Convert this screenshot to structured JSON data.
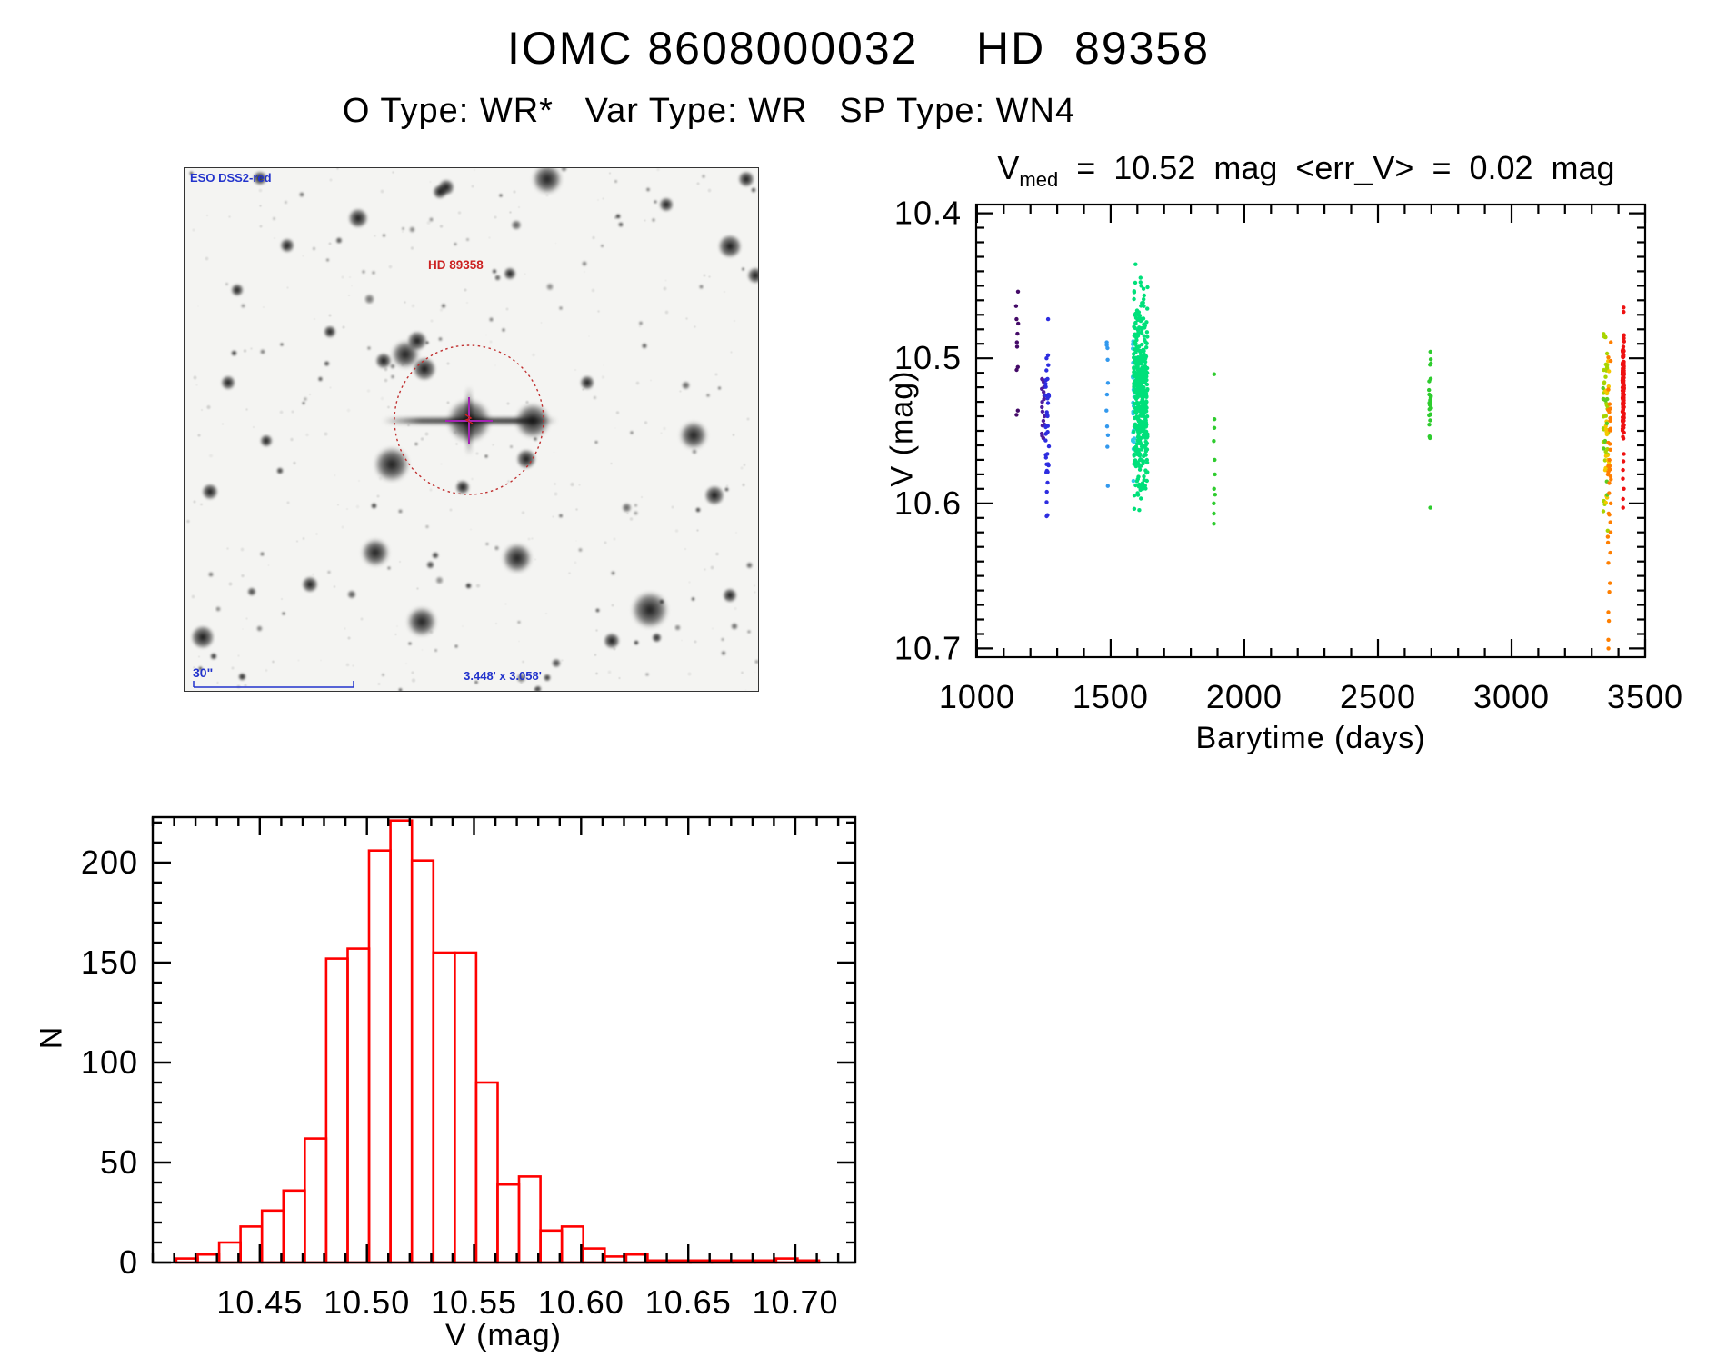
{
  "render_seed": 20240612,
  "page": {
    "title": "IOMC 8608000032    HD  89358",
    "subtitle": "O Type: WR*   Var Type: WR   SP Type: WN4"
  },
  "finder": {
    "survey_label": "ESO DSS2-red",
    "target_label": "HD 89358",
    "scale_label": "30\"",
    "fov_label": "3.448' x 3.058'",
    "colors": {
      "annotation_blue": "#2233cc",
      "target_circle_red": "#c03030",
      "crosshair_purple": "#a424b4"
    },
    "random_specks": {
      "count": 260
    },
    "random_stars": {
      "count": 120
    },
    "prominent_stars": [
      [
        313,
        278,
        24
      ],
      [
        383,
        278,
        19
      ],
      [
        243,
        205,
        15
      ],
      [
        264,
        221,
        13
      ],
      [
        219,
        212,
        9
      ],
      [
        256,
        190,
        11
      ],
      [
        228,
        326,
        19
      ],
      [
        399,
        12,
        16
      ],
      [
        191,
        55,
        11
      ],
      [
        113,
        85,
        8
      ],
      [
        281,
        26,
        8
      ],
      [
        600,
        86,
        13
      ],
      [
        628,
        118,
        9
      ],
      [
        560,
        294,
        15
      ],
      [
        583,
        360,
        11
      ],
      [
        210,
        423,
        15
      ],
      [
        366,
        429,
        16
      ],
      [
        261,
        499,
        16
      ],
      [
        512,
        486,
        20
      ],
      [
        20,
        516,
        13
      ],
      [
        138,
        458,
        9
      ],
      [
        48,
        236,
        8
      ],
      [
        28,
        356,
        9
      ],
      [
        288,
        21,
        9
      ],
      [
        358,
        116,
        7
      ],
      [
        376,
        320,
        11
      ],
      [
        306,
        351,
        8
      ],
      [
        58,
        134,
        7
      ],
      [
        443,
        236,
        8
      ],
      [
        530,
        40,
        8
      ],
      [
        618,
        12,
        9
      ],
      [
        83,
        11,
        8
      ],
      [
        470,
        520,
        9
      ],
      [
        600,
        470,
        8
      ],
      [
        160,
        180,
        7
      ],
      [
        90,
        300,
        7
      ]
    ]
  },
  "chart_data": [
    {
      "type": "scatter",
      "title": {
        "pre": "V",
        "sub": "med",
        "post": " = 10.52 mag <err_V> = 0.02 mag"
      },
      "xlabel": "Barytime (days)",
      "ylabel": "V (mag)",
      "xlim": [
        997,
        3500
      ],
      "ylim": [
        10.394,
        10.706
      ],
      "y_axis_inverted": true,
      "grid": false,
      "x_major_ticks": [
        1000,
        1500,
        2000,
        2500,
        3000,
        3500
      ],
      "x_tick_labels": [
        "1000",
        "1500",
        "2000",
        "2500",
        "3000",
        "3500"
      ],
      "x_minor_step": 100,
      "y_major_ticks": [
        10.4,
        10.5,
        10.6,
        10.7
      ],
      "y_tick_labels": [
        "10.4",
        "10.5",
        "10.6",
        "10.7"
      ],
      "y_minor_step": 0.01,
      "clusters": [
        {
          "name": "epoch-1150-darkpurple",
          "color": "#440a68",
          "day": 1150,
          "day_jitter": 4,
          "mags": [
            10.454,
            10.464,
            10.473,
            10.476,
            10.483,
            10.489,
            10.492,
            10.506,
            10.508,
            10.536,
            10.539
          ]
        },
        {
          "name": "epoch-1248-purple",
          "color": "#4f1d9e",
          "day": 1248,
          "day_jitter": 6,
          "gen": {
            "n": 18,
            "mean": 10.54,
            "sd": 0.022,
            "min": 10.503,
            "max": 10.567
          }
        },
        {
          "name": "epoch-1263-blue",
          "color": "#2d2de0",
          "day": 1263,
          "day_jitter": 7,
          "gen": {
            "n": 40,
            "mean": 10.545,
            "sd": 0.038,
            "min": 10.452,
            "max": 10.615
          }
        },
        {
          "name": "epoch-1487-lightblue",
          "color": "#3399ee",
          "day": 1487,
          "day_jitter": 3,
          "mags": [
            10.489,
            10.491,
            10.493,
            10.501,
            10.517,
            10.525,
            10.536,
            10.547,
            10.553,
            10.561,
            10.588
          ]
        },
        {
          "name": "epoch-1586-cyan",
          "color": "#2ec8e8",
          "day": 1586,
          "day_jitter": 4,
          "gen": {
            "n": 22,
            "mean": 10.53,
            "sd": 0.03,
            "min": 10.468,
            "max": 10.6
          }
        },
        {
          "name": "epoch-1612-springgreen",
          "color": "#00e07a",
          "day": 1612,
          "day_jitter": 26,
          "gen": {
            "n": 430,
            "mean": 10.523,
            "sd": 0.033,
            "min": 10.409,
            "max": 10.627
          }
        },
        {
          "name": "epoch-1888-green",
          "color": "#2ecc2e",
          "day": 1888,
          "day_jitter": 3,
          "mags": [
            10.511,
            10.542,
            10.548,
            10.557,
            10.57,
            10.58,
            10.59,
            10.594,
            10.6,
            10.607,
            10.614
          ]
        },
        {
          "name": "epoch-2695-green",
          "color": "#2ecc2e",
          "day": 2695,
          "day_jitter": 4,
          "gen": {
            "n": 26,
            "mean": 10.525,
            "sd": 0.02,
            "min": 10.487,
            "max": 10.558
          },
          "mags": [
            10.603
          ]
        },
        {
          "name": "epoch-3352-yellowgreen",
          "color": "#a8d400",
          "day": 3352,
          "day_jitter": 9,
          "gen": {
            "n": 40,
            "mean": 10.535,
            "sd": 0.035,
            "min": 10.483,
            "max": 10.625
          }
        },
        {
          "name": "epoch-3358-gold",
          "color": "#f5c800",
          "day": 3358,
          "day_jitter": 8,
          "gen": {
            "n": 22,
            "mean": 10.545,
            "sd": 0.03,
            "min": 10.49,
            "max": 10.63
          }
        },
        {
          "name": "epoch-3350-green",
          "color": "#5ccc22",
          "day": 3350,
          "day_jitter": 8,
          "gen": {
            "n": 10,
            "mean": 10.55,
            "sd": 0.04,
            "min": 10.49,
            "max": 10.62
          }
        },
        {
          "name": "epoch-3366-orange",
          "color": "#ff7f00",
          "day": 3366,
          "day_jitter": 6,
          "gen": {
            "n": 30,
            "mean": 10.55,
            "sd": 0.035,
            "min": 10.483,
            "max": 10.63
          },
          "mags": [
            10.586,
            10.593,
            10.6,
            10.607,
            10.613,
            10.62,
            10.627,
            10.634,
            10.641,
            10.655,
            10.661,
            10.675,
            10.681,
            10.694,
            10.7
          ]
        },
        {
          "name": "epoch-3418-red",
          "color": "#ee1111",
          "day": 3418,
          "day_jitter": 3,
          "gen": {
            "n": 160,
            "mean": 10.52,
            "sd": 0.017,
            "min": 10.483,
            "max": 10.558
          },
          "mags": [
            10.465,
            10.468,
            10.566,
            10.571,
            10.577,
            10.583,
            10.59,
            10.597,
            10.603
          ]
        }
      ]
    },
    {
      "type": "histogram",
      "xlabel": "V (mag)",
      "ylabel": "N",
      "color": "#ff0000",
      "xlim": [
        10.4,
        10.728
      ],
      "ylim": [
        0,
        222.7
      ],
      "grid": false,
      "bin_start": 10.411,
      "bin_width": 0.01,
      "counts": [
        2,
        4,
        10,
        18,
        26,
        36,
        62,
        152,
        157,
        206,
        221,
        201,
        155,
        155,
        90,
        39,
        43,
        16,
        18,
        7,
        3,
        4,
        1,
        1,
        1,
        1,
        1,
        1,
        2,
        1
      ],
      "x_major_ticks": [
        10.45,
        10.5,
        10.55,
        10.6,
        10.65,
        10.7
      ],
      "x_tick_labels": [
        "10.45",
        "10.50",
        "10.55",
        "10.60",
        "10.65",
        "10.70"
      ],
      "x_minor_step": 0.01,
      "y_major_ticks": [
        0,
        50,
        100,
        150,
        200
      ],
      "y_tick_labels": [
        "0",
        "50",
        "100",
        "150",
        "200"
      ],
      "y_minor_step": 10
    }
  ]
}
